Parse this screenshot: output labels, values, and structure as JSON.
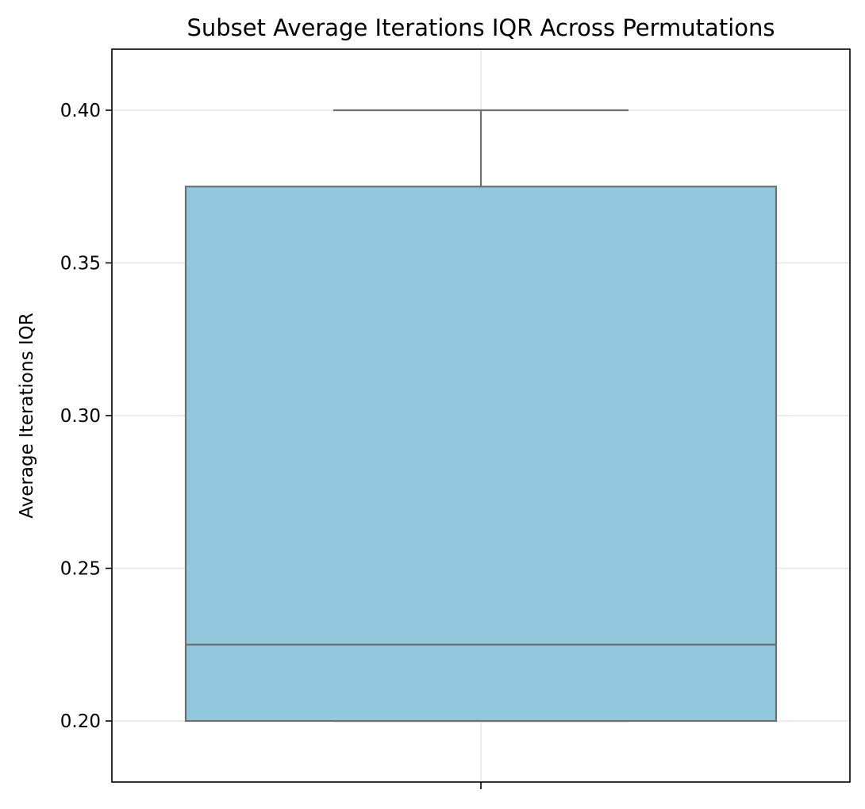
{
  "chart_data": {
    "type": "box",
    "title": "Subset Average Iterations IQR Across Permutations",
    "xlabel": "",
    "ylabel": "Average Iterations IQR",
    "ylim": [
      0.18,
      0.42
    ],
    "yticks": [
      0.2,
      0.25,
      0.3,
      0.35,
      0.4
    ],
    "ytick_labels": [
      "0.20",
      "0.25",
      "0.30",
      "0.35",
      "0.40"
    ],
    "grid": true,
    "box": {
      "whisker_low": 0.2,
      "q1": 0.2,
      "median": 0.225,
      "q3": 0.375,
      "whisker_high": 0.4
    },
    "colors": {
      "box_fill": "#92c8dd",
      "box_edge": "#6f6f6f",
      "grid": "#e5e5e5",
      "axes": "#000000"
    }
  }
}
